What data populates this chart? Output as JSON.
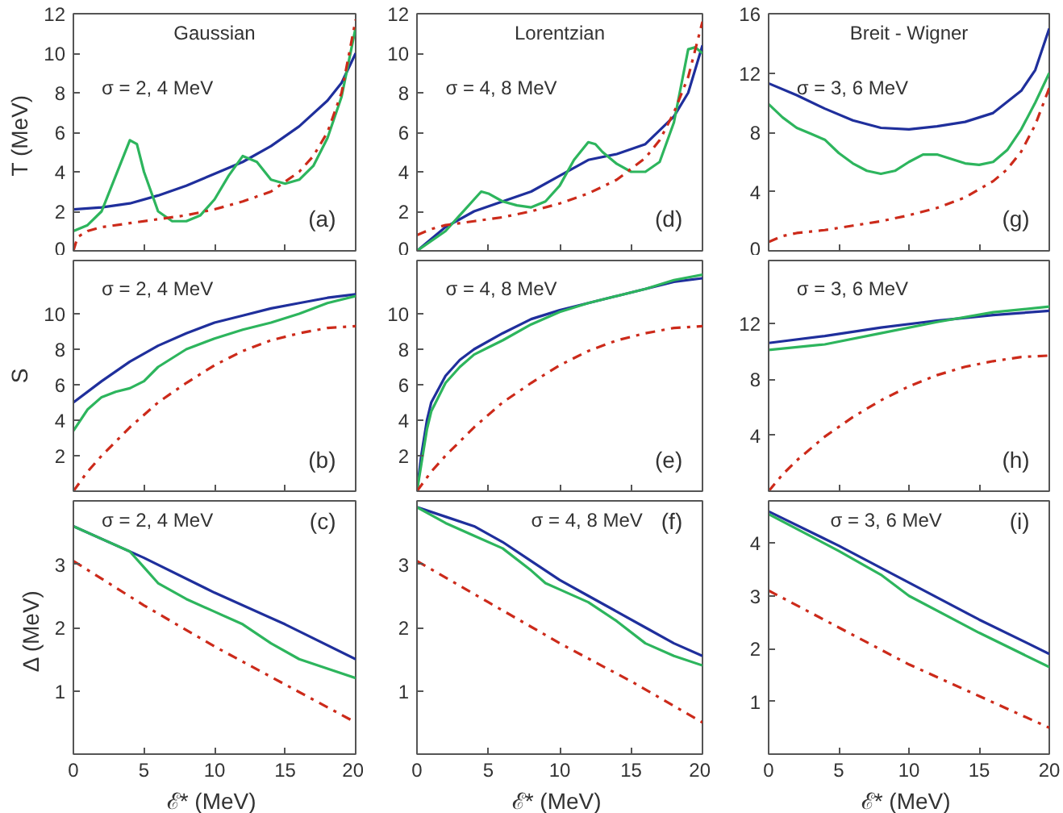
{
  "chart_data": [
    {
      "type": "line",
      "title": "Gaussian",
      "ylabel": "T  (MeV)",
      "xlim": [
        0,
        20
      ],
      "xticks": [
        0,
        5,
        10,
        15,
        20
      ],
      "ylim": [
        0,
        12
      ],
      "yticks": [
        0,
        2,
        4,
        6,
        8,
        10,
        12
      ],
      "tick_labels": "y",
      "annotations": [
        "σ = 2, 4 MeV",
        "(a)"
      ],
      "series": [
        {
          "color": "#1f2f9c",
          "line_style": "solid",
          "x": [
            0,
            2,
            4,
            6,
            8,
            10,
            12,
            14,
            16,
            18,
            19,
            20
          ],
          "values": [
            2.1,
            2.2,
            2.4,
            2.8,
            3.3,
            3.9,
            4.5,
            5.3,
            6.3,
            7.6,
            8.5,
            10.0
          ]
        },
        {
          "color": "#2db55d",
          "line_style": "solid",
          "x": [
            0,
            1,
            2,
            3,
            4,
            4.5,
            5,
            6,
            7,
            8,
            9,
            10,
            11,
            12,
            13,
            14,
            15,
            16,
            17,
            18,
            19,
            20
          ],
          "values": [
            1.0,
            1.3,
            2.0,
            3.8,
            5.6,
            5.4,
            4.0,
            2.0,
            1.5,
            1.5,
            1.8,
            2.6,
            3.8,
            4.8,
            4.5,
            3.6,
            3.4,
            3.6,
            4.3,
            5.7,
            7.8,
            11.3
          ]
        },
        {
          "color": "#cc2a1a",
          "line_style": "dashdot",
          "x": [
            0,
            0.3,
            1,
            2,
            4,
            6,
            8,
            10,
            12,
            14,
            16,
            17,
            18,
            19,
            20
          ],
          "values": [
            0,
            0.7,
            1.0,
            1.2,
            1.4,
            1.6,
            1.8,
            2.1,
            2.5,
            3.0,
            4.0,
            4.8,
            6.0,
            8.0,
            11.7
          ]
        }
      ]
    },
    {
      "type": "line",
      "title": "Lorentzian",
      "xlim": [
        0,
        20
      ],
      "xticks": [
        0,
        5,
        10,
        15,
        20
      ],
      "ylim": [
        0,
        12
      ],
      "yticks": [
        0,
        2,
        4,
        6,
        8,
        10,
        12
      ],
      "tick_labels": "y",
      "annotations": [
        "σ = 4, 8 MeV",
        "(d)"
      ],
      "series": [
        {
          "color": "#1f2f9c",
          "line_style": "solid",
          "x": [
            0,
            2,
            4,
            6,
            8,
            10,
            12,
            14,
            16,
            18,
            19,
            20
          ],
          "values": [
            0,
            1.2,
            2.0,
            2.5,
            3.0,
            3.8,
            4.6,
            4.9,
            5.4,
            6.8,
            8.0,
            10.4
          ]
        },
        {
          "color": "#2db55d",
          "line_style": "solid",
          "x": [
            0,
            2,
            3,
            4,
            4.5,
            5,
            6,
            7,
            8,
            9,
            10,
            11,
            12,
            12.5,
            13,
            14,
            15,
            16,
            17,
            18,
            19,
            19.5,
            20
          ],
          "values": [
            0,
            1.0,
            1.8,
            2.6,
            3.0,
            2.9,
            2.5,
            2.3,
            2.2,
            2.5,
            3.3,
            4.6,
            5.5,
            5.4,
            5.0,
            4.4,
            4.0,
            4.0,
            4.5,
            6.5,
            10.2,
            10.3,
            10.0
          ]
        },
        {
          "color": "#cc2a1a",
          "line_style": "dashdot",
          "x": [
            0,
            1,
            2,
            4,
            6,
            8,
            10,
            12,
            14,
            16,
            17,
            18,
            19,
            20
          ],
          "values": [
            0.8,
            1.1,
            1.3,
            1.5,
            1.7,
            2.0,
            2.4,
            2.9,
            3.6,
            4.7,
            5.6,
            7.0,
            8.8,
            11.6
          ]
        }
      ]
    },
    {
      "type": "line",
      "title": "Breit - Wigner",
      "xlim": [
        0,
        20
      ],
      "xticks": [
        0,
        5,
        10,
        15,
        20
      ],
      "ylim": [
        0,
        16
      ],
      "yticks": [
        0,
        4,
        8,
        12,
        16
      ],
      "tick_labels": "y",
      "annotations": [
        "σ = 3, 6 MeV",
        "(g)"
      ],
      "series": [
        {
          "color": "#1f2f9c",
          "line_style": "solid",
          "x": [
            0,
            2,
            4,
            6,
            8,
            10,
            12,
            14,
            16,
            18,
            19,
            20
          ],
          "values": [
            11.3,
            10.5,
            9.6,
            8.8,
            8.3,
            8.2,
            8.4,
            8.7,
            9.3,
            10.8,
            12.2,
            15.0
          ]
        },
        {
          "color": "#2db55d",
          "line_style": "solid",
          "x": [
            0,
            1,
            2,
            3,
            4,
            5,
            6,
            7,
            8,
            9,
            10,
            11,
            12,
            13,
            14,
            15,
            16,
            17,
            18,
            19,
            20
          ],
          "values": [
            9.9,
            9.0,
            8.3,
            7.9,
            7.5,
            6.6,
            5.9,
            5.4,
            5.2,
            5.4,
            6.0,
            6.5,
            6.5,
            6.2,
            5.9,
            5.8,
            6.0,
            6.8,
            8.2,
            10.0,
            12.0
          ]
        },
        {
          "color": "#cc2a1a",
          "line_style": "dashdot",
          "x": [
            0,
            1,
            2,
            4,
            6,
            8,
            10,
            12,
            14,
            16,
            17,
            18,
            19,
            20
          ],
          "values": [
            0.6,
            1.0,
            1.2,
            1.4,
            1.7,
            2.0,
            2.4,
            2.9,
            3.6,
            4.7,
            5.5,
            6.7,
            8.5,
            11.0
          ]
        }
      ]
    },
    {
      "type": "line",
      "ylabel": "S",
      "xlim": [
        0,
        20
      ],
      "xticks": [
        0,
        5,
        10,
        15,
        20
      ],
      "ylim": [
        0,
        13
      ],
      "yticks": [
        2,
        4,
        6,
        8,
        10
      ],
      "tick_labels": "y",
      "annotations": [
        "σ = 2, 4 MeV",
        "(b)"
      ],
      "series": [
        {
          "color": "#1f2f9c",
          "line_style": "solid",
          "x": [
            0,
            2,
            4,
            6,
            8,
            10,
            12,
            14,
            16,
            18,
            20
          ],
          "values": [
            5.0,
            6.2,
            7.3,
            8.2,
            8.9,
            9.5,
            9.9,
            10.3,
            10.6,
            10.9,
            11.1
          ]
        },
        {
          "color": "#2db55d",
          "line_style": "solid",
          "x": [
            0,
            1,
            2,
            3,
            4,
            5,
            6,
            8,
            10,
            12,
            14,
            16,
            18,
            20
          ],
          "values": [
            3.4,
            4.6,
            5.3,
            5.6,
            5.8,
            6.2,
            7.0,
            8.0,
            8.6,
            9.1,
            9.5,
            10.0,
            10.6,
            11.0
          ]
        },
        {
          "color": "#cc2a1a",
          "line_style": "dashdot",
          "x": [
            0,
            1,
            2,
            4,
            6,
            8,
            10,
            12,
            14,
            16,
            18,
            20
          ],
          "values": [
            0,
            1.1,
            2.0,
            3.6,
            5.0,
            6.1,
            7.1,
            7.9,
            8.5,
            8.9,
            9.2,
            9.3
          ]
        }
      ]
    },
    {
      "type": "line",
      "xlim": [
        0,
        20
      ],
      "xticks": [
        0,
        5,
        10,
        15,
        20
      ],
      "ylim": [
        0,
        13
      ],
      "yticks": [
        2,
        4,
        6,
        8,
        10
      ],
      "tick_labels": "y",
      "annotations": [
        "σ = 4, 8 MeV",
        "(e)"
      ],
      "series": [
        {
          "color": "#1f2f9c",
          "line_style": "solid",
          "x": [
            0,
            0.3,
            0.7,
            1,
            2,
            3,
            4,
            6,
            8,
            10,
            12,
            14,
            16,
            18,
            20
          ],
          "values": [
            0,
            2.0,
            4.0,
            5.0,
            6.5,
            7.4,
            8.0,
            8.9,
            9.7,
            10.2,
            10.6,
            11.0,
            11.4,
            11.8,
            12.0
          ]
        },
        {
          "color": "#2db55d",
          "line_style": "solid",
          "x": [
            0,
            0.3,
            0.7,
            1,
            2,
            3,
            4,
            5,
            6,
            8,
            10,
            12,
            14,
            16,
            18,
            20
          ],
          "values": [
            0,
            1.5,
            3.5,
            4.5,
            6.1,
            7.0,
            7.7,
            8.1,
            8.5,
            9.4,
            10.1,
            10.6,
            11.0,
            11.4,
            11.9,
            12.2
          ]
        },
        {
          "color": "#cc2a1a",
          "line_style": "dashdot",
          "x": [
            0,
            1,
            2,
            4,
            6,
            8,
            10,
            12,
            14,
            16,
            18,
            20
          ],
          "values": [
            0,
            1.1,
            2.0,
            3.6,
            5.0,
            6.1,
            7.1,
            7.9,
            8.5,
            8.9,
            9.2,
            9.3
          ]
        }
      ]
    },
    {
      "type": "line",
      "xlim": [
        0,
        20
      ],
      "xticks": [
        0,
        5,
        10,
        15,
        20
      ],
      "ylim": [
        0,
        16.5
      ],
      "yticks": [
        4,
        8,
        12
      ],
      "tick_labels": "y",
      "annotations": [
        "σ = 3, 6 MeV",
        "(h)"
      ],
      "series": [
        {
          "color": "#1f2f9c",
          "line_style": "solid",
          "x": [
            0,
            4,
            8,
            12,
            16,
            20
          ],
          "values": [
            10.6,
            11.1,
            11.7,
            12.2,
            12.6,
            12.9
          ]
        },
        {
          "color": "#2db55d",
          "line_style": "solid",
          "x": [
            0,
            4,
            8,
            12,
            16,
            20
          ],
          "values": [
            10.1,
            10.5,
            11.3,
            12.1,
            12.8,
            13.2
          ]
        },
        {
          "color": "#cc2a1a",
          "line_style": "dashdot",
          "x": [
            0,
            1,
            2,
            4,
            6,
            8,
            10,
            12,
            14,
            16,
            18,
            20
          ],
          "values": [
            0,
            1.2,
            2.2,
            3.9,
            5.3,
            6.5,
            7.5,
            8.3,
            8.9,
            9.3,
            9.6,
            9.7
          ]
        }
      ]
    },
    {
      "type": "line",
      "ylabel": "Δ  (MeV)",
      "xlabel": "ℰ*  (MeV)",
      "xlim": [
        0,
        20
      ],
      "xticks": [
        0,
        5,
        10,
        15,
        20
      ],
      "ylim": [
        0,
        4
      ],
      "yticks": [
        1,
        2,
        3
      ],
      "annotations": [
        "σ = 2, 4 MeV",
        "(c)"
      ],
      "series": [
        {
          "color": "#1f2f9c",
          "line_style": "solid",
          "x": [
            0,
            5,
            10,
            15,
            20
          ],
          "values": [
            3.6,
            3.1,
            2.55,
            2.05,
            1.5
          ]
        },
        {
          "color": "#2db55d",
          "line_style": "solid",
          "x": [
            0,
            2,
            4,
            5,
            6,
            8,
            10,
            12,
            14,
            16,
            18,
            20
          ],
          "values": [
            3.6,
            3.4,
            3.2,
            2.95,
            2.7,
            2.45,
            2.25,
            2.05,
            1.75,
            1.5,
            1.35,
            1.2
          ]
        },
        {
          "color": "#cc2a1a",
          "line_style": "dashdot",
          "x": [
            0,
            5,
            10,
            15,
            20
          ],
          "values": [
            3.05,
            2.35,
            1.7,
            1.1,
            0.5
          ]
        }
      ]
    },
    {
      "type": "line",
      "xlabel": "ℰ*  (MeV)",
      "xlim": [
        0,
        20
      ],
      "xticks": [
        0,
        5,
        10,
        15,
        20
      ],
      "ylim": [
        0,
        4
      ],
      "yticks": [
        1,
        2,
        3
      ],
      "annotations": [
        "σ = 4, 8 MeV",
        "(f)"
      ],
      "series": [
        {
          "color": "#1f2f9c",
          "line_style": "solid",
          "x": [
            0,
            2,
            4,
            6,
            8,
            10,
            12,
            14,
            16,
            18,
            20
          ],
          "values": [
            3.9,
            3.75,
            3.6,
            3.35,
            3.05,
            2.75,
            2.5,
            2.25,
            2.0,
            1.75,
            1.55
          ]
        },
        {
          "color": "#2db55d",
          "line_style": "solid",
          "x": [
            0,
            2,
            4,
            6,
            8,
            9,
            10,
            12,
            14,
            16,
            18,
            20
          ],
          "values": [
            3.9,
            3.65,
            3.45,
            3.25,
            2.9,
            2.7,
            2.6,
            2.4,
            2.1,
            1.75,
            1.55,
            1.4
          ]
        },
        {
          "color": "#cc2a1a",
          "line_style": "dashdot",
          "x": [
            0,
            5,
            10,
            15,
            20
          ],
          "values": [
            3.05,
            2.4,
            1.75,
            1.15,
            0.5
          ]
        }
      ]
    },
    {
      "type": "line",
      "xlabel": "ℰ*  (MeV)",
      "xlim": [
        0,
        20
      ],
      "xticks": [
        0,
        5,
        10,
        15,
        20
      ],
      "ylim": [
        0,
        4.8
      ],
      "yticks": [
        1,
        2,
        3,
        4
      ],
      "annotations": [
        "σ = 3, 6 MeV",
        "(i)"
      ],
      "series": [
        {
          "color": "#1f2f9c",
          "line_style": "solid",
          "x": [
            0,
            5,
            10,
            15,
            20
          ],
          "values": [
            4.6,
            3.95,
            3.25,
            2.55,
            1.9
          ]
        },
        {
          "color": "#2db55d",
          "line_style": "solid",
          "x": [
            0,
            5,
            8,
            10,
            15,
            20
          ],
          "values": [
            4.55,
            3.85,
            3.4,
            3.0,
            2.3,
            1.65
          ]
        },
        {
          "color": "#cc2a1a",
          "line_style": "dashdot",
          "x": [
            0,
            5,
            10,
            15,
            20
          ],
          "values": [
            3.1,
            2.4,
            1.7,
            1.1,
            0.5
          ]
        }
      ]
    }
  ]
}
